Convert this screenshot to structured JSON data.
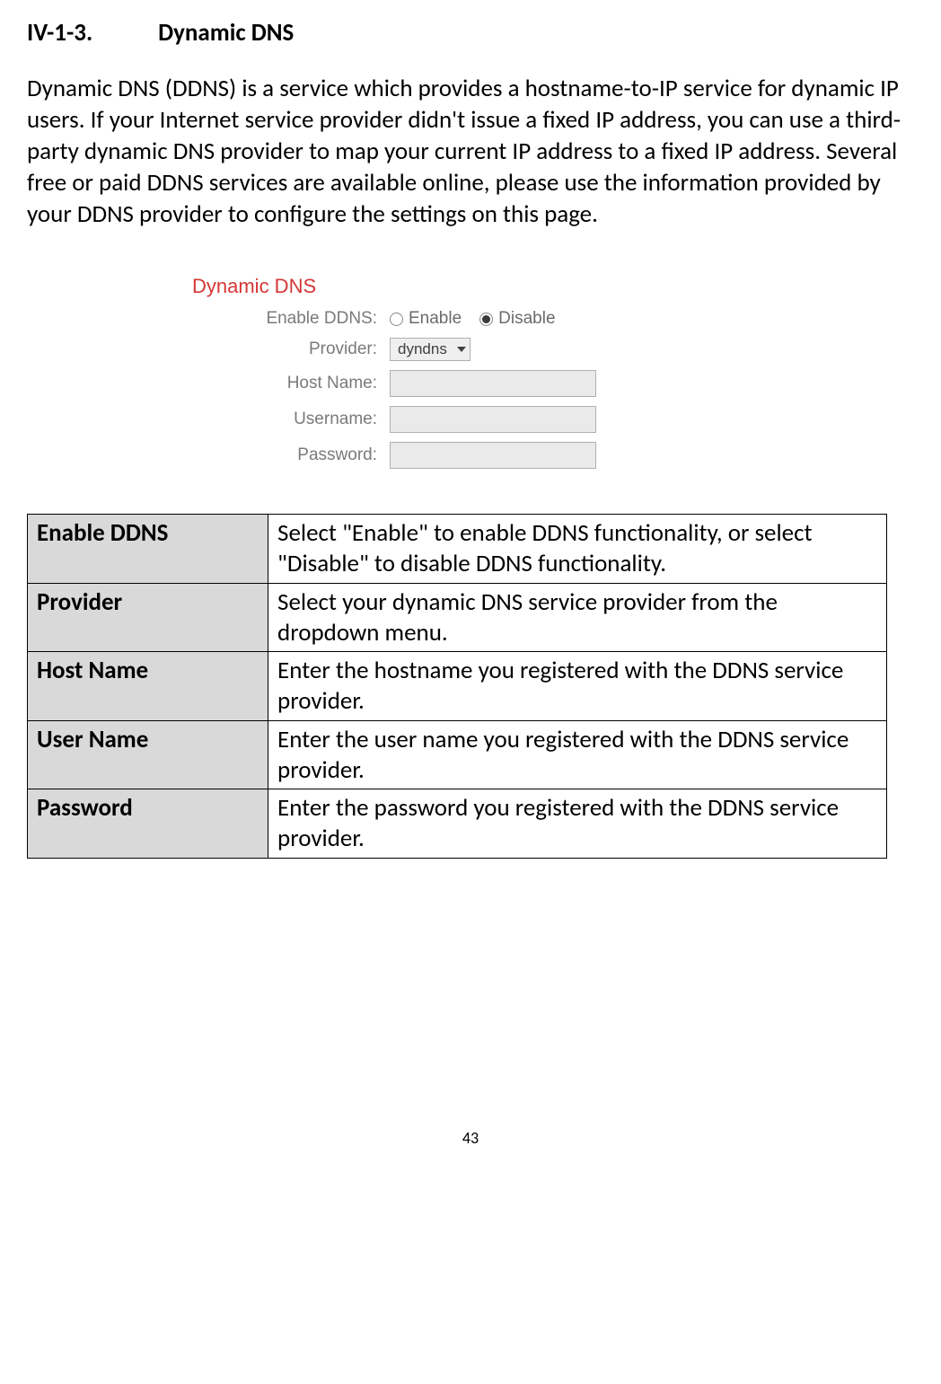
{
  "heading": {
    "number": "IV-1-3.",
    "title": "Dynamic DNS"
  },
  "intro": "Dynamic DNS (DDNS) is a service which provides a hostname-to-IP service for dynamic IP users. If your Internet service provider didn't issue a fixed IP address, you can use a third-party dynamic DNS provider to map your current IP address to a fixed IP address. Several free or paid DDNS services are available online, please use the information provided by your DDNS provider to configure the settings on this page.",
  "form": {
    "header": "Dynamic DNS",
    "rows": {
      "enable": {
        "label": "Enable DDNS:",
        "opt1": "Enable",
        "opt2": "Disable"
      },
      "provider": {
        "label": "Provider:",
        "selected": "dyndns"
      },
      "host": {
        "label": "Host Name:",
        "value": ""
      },
      "user": {
        "label": "Username:",
        "value": ""
      },
      "pass": {
        "label": "Password:",
        "value": ""
      }
    }
  },
  "table": {
    "rows": [
      {
        "name": "Enable DDNS",
        "desc": "Select \"Enable\" to enable DDNS functionality, or select \"Disable\" to disable DDNS functionality."
      },
      {
        "name": "Provider",
        "desc": "Select your dynamic DNS service provider from the dropdown menu."
      },
      {
        "name": "Host Name",
        "desc": "Enter the hostname you registered with the DDNS service provider."
      },
      {
        "name": "User Name",
        "desc": "Enter the user name you registered with the DDNS service provider."
      },
      {
        "name": "Password",
        "desc": "Enter the password you registered with the DDNS service provider."
      }
    ]
  },
  "page_number": "43"
}
